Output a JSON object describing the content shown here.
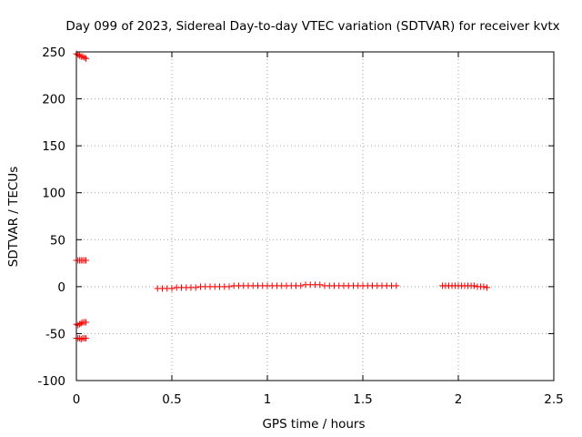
{
  "chart_data": {
    "type": "scatter",
    "title": "Day 099 of 2023, Sidereal Day-to-day VTEC variation (SDTVAR) for receiver kvtx",
    "xlabel": "GPS time / hours",
    "ylabel": "SDTVAR / TECUs",
    "xlim": [
      0,
      2.5
    ],
    "ylim": [
      -100,
      250
    ],
    "x_ticks": [
      0,
      0.5,
      1,
      1.5,
      2,
      2.5
    ],
    "x_tick_labels": [
      "0",
      "0.5",
      "1",
      "1.5",
      "2",
      "2.5"
    ],
    "y_ticks": [
      -100,
      -50,
      0,
      50,
      100,
      150,
      200,
      250
    ],
    "y_tick_labels": [
      "-100",
      "-50",
      "0",
      "50",
      "100",
      "150",
      "200",
      "250"
    ],
    "grid": true,
    "marker": "plus",
    "colors": {
      "series": "#ff0000",
      "grid": "#a0a0a0",
      "axes": "#000000"
    },
    "series": [
      {
        "x": [
          0.0,
          0.008,
          0.017,
          0.025,
          0.033,
          0.042,
          0.05,
          0.0,
          0.008,
          0.017,
          0.025,
          0.033,
          0.042,
          0.05,
          0.0,
          0.008,
          0.017,
          0.025,
          0.033,
          0.042,
          0.05,
          0.0,
          0.008,
          0.017,
          0.025,
          0.033,
          0.042,
          0.05,
          0.425,
          0.45,
          0.475,
          0.5,
          0.525,
          0.55,
          0.575,
          0.6,
          0.625,
          0.65,
          0.675,
          0.7,
          0.725,
          0.75,
          0.775,
          0.8,
          0.825,
          0.85,
          0.875,
          0.9,
          0.925,
          0.95,
          0.975,
          1.0,
          1.025,
          1.05,
          1.075,
          1.1,
          1.125,
          1.15,
          1.175,
          1.2,
          1.225,
          1.25,
          1.275,
          1.3,
          1.325,
          1.35,
          1.375,
          1.4,
          1.425,
          1.45,
          1.475,
          1.5,
          1.525,
          1.55,
          1.575,
          1.6,
          1.625,
          1.65,
          1.675,
          1.917,
          1.933,
          1.95,
          1.967,
          1.983,
          2.0,
          2.017,
          2.033,
          2.05,
          2.067,
          2.083,
          2.1,
          2.117,
          2.133,
          2.15
        ],
        "y": [
          248,
          247,
          246,
          245,
          245,
          244,
          243,
          28,
          28,
          28,
          28,
          28,
          28,
          28,
          -40,
          -41,
          -40,
          -39,
          -38,
          -38,
          -38,
          -55,
          -55,
          -55,
          -56,
          -55,
          -55,
          -55,
          -2,
          -2,
          -2,
          -2,
          -1,
          -1,
          -1,
          -1,
          -1,
          0,
          0,
          0,
          0,
          0,
          0,
          0,
          1,
          1,
          1,
          1,
          1,
          1,
          1,
          1,
          1,
          1,
          1,
          1,
          1,
          1,
          1,
          2,
          2,
          2,
          2,
          1,
          1,
          1,
          1,
          1,
          1,
          1,
          1,
          1,
          1,
          1,
          1,
          1,
          1,
          1,
          1,
          1,
          1,
          1,
          1,
          1,
          1,
          1,
          1,
          1,
          1,
          1,
          0,
          0,
          0,
          -1
        ]
      }
    ]
  }
}
